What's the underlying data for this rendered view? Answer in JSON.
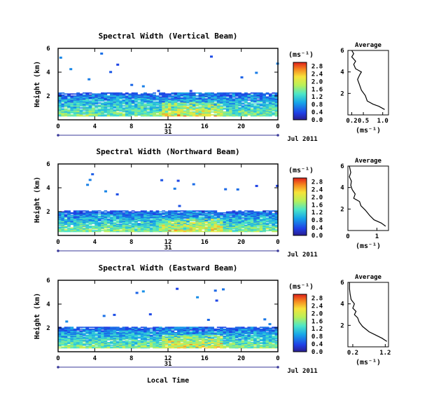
{
  "figure": {
    "xlabel": "Local Time",
    "date_label": "Jul 2011",
    "day_label": "31"
  },
  "chart_data": [
    {
      "type": "heatmap",
      "title": "Spectral Width (Vertical Beam)",
      "ylabel": "Height (km)",
      "x_ticks": [
        "0",
        "4",
        "8",
        "12",
        "16",
        "20",
        "0"
      ],
      "y_ticks": [
        "2",
        "4",
        "6"
      ],
      "xlim": [
        0,
        24
      ],
      "ylim": [
        0,
        6
      ],
      "colorbar": {
        "unit": "(ms⁻¹)",
        "ticks": [
          "0.0",
          "0.4",
          "0.8",
          "1.2",
          "1.6",
          "2.0",
          "2.4",
          "2.8"
        ],
        "range": [
          0,
          3.0
        ]
      },
      "average_panel": {
        "title": "Average",
        "xlabel": "(ms⁻¹)",
        "x_ticks": [
          "0.2",
          "0.5",
          "1.0"
        ],
        "xlim": [
          0.1,
          1.15
        ],
        "y_ticks": [
          "2",
          "4",
          "6"
        ],
        "profile": [
          [
            1.05,
            0.5
          ],
          [
            0.9,
            0.8
          ],
          [
            0.75,
            1.0
          ],
          [
            0.6,
            1.3
          ],
          [
            0.55,
            1.8
          ],
          [
            0.45,
            2.3
          ],
          [
            0.4,
            2.8
          ],
          [
            0.35,
            3.3
          ],
          [
            0.4,
            3.7
          ],
          [
            0.45,
            4.0
          ],
          [
            0.3,
            4.3
          ],
          [
            0.25,
            4.7
          ],
          [
            0.3,
            5.0
          ],
          [
            0.2,
            5.4
          ],
          [
            0.25,
            5.7
          ],
          [
            0.2,
            6.0
          ]
        ]
      }
    },
    {
      "type": "heatmap",
      "title": "Spectral Width (Northward Beam)",
      "ylabel": "Height (km)",
      "x_ticks": [
        "0",
        "4",
        "8",
        "12",
        "16",
        "20",
        "0"
      ],
      "y_ticks": [
        "2",
        "4",
        "6"
      ],
      "xlim": [
        0,
        24
      ],
      "ylim": [
        0,
        6
      ],
      "colorbar": {
        "unit": "(ms⁻¹)",
        "ticks": [
          "0.0",
          "0.4",
          "0.8",
          "1.2",
          "1.6",
          "2.0",
          "2.4",
          "2.8"
        ],
        "range": [
          0,
          3.0
        ]
      },
      "average_panel": {
        "title": "Average",
        "xlabel": "(ms⁻¹)",
        "x_ticks": [
          "0",
          "1"
        ],
        "xlim": [
          0,
          1.4
        ],
        "y_ticks": [
          "2",
          "4",
          "6"
        ],
        "profile": [
          [
            1.3,
            0.4
          ],
          [
            1.15,
            0.7
          ],
          [
            0.9,
            1.0
          ],
          [
            0.75,
            1.4
          ],
          [
            0.6,
            1.9
          ],
          [
            0.45,
            2.3
          ],
          [
            0.4,
            2.7
          ],
          [
            0.2,
            3.0
          ],
          [
            0.25,
            3.4
          ],
          [
            0.15,
            3.8
          ],
          [
            0.1,
            4.2
          ],
          [
            0.12,
            4.6
          ],
          [
            0.05,
            5.0
          ],
          [
            0.1,
            5.4
          ],
          [
            0.05,
            6.0
          ]
        ]
      }
    },
    {
      "type": "heatmap",
      "title": "Spectral Width (Eastward Beam)",
      "ylabel": "Height (km)",
      "x_ticks": [
        "0",
        "4",
        "8",
        "12",
        "16",
        "20",
        "0"
      ],
      "y_ticks": [
        "2",
        "4",
        "6"
      ],
      "xlim": [
        0,
        24
      ],
      "ylim": [
        0,
        6
      ],
      "colorbar": {
        "unit": "(ms⁻¹)",
        "ticks": [
          "0.0",
          "0.4",
          "0.8",
          "1.2",
          "1.6",
          "2.0",
          "2.4",
          "2.8"
        ],
        "range": [
          0,
          3.0
        ]
      },
      "average_panel": {
        "title": "Average",
        "xlabel": "(ms⁻¹)",
        "x_ticks": [
          "0.2",
          "1.2"
        ],
        "xlim": [
          0.05,
          1.3
        ],
        "y_ticks": [
          "2",
          "4",
          "6"
        ],
        "profile": [
          [
            1.25,
            0.5
          ],
          [
            1.1,
            0.8
          ],
          [
            0.9,
            1.1
          ],
          [
            0.7,
            1.4
          ],
          [
            0.5,
            1.9
          ],
          [
            0.4,
            2.3
          ],
          [
            0.35,
            2.7
          ],
          [
            0.25,
            3.0
          ],
          [
            0.3,
            3.3
          ],
          [
            0.2,
            3.6
          ],
          [
            0.25,
            4.0
          ],
          [
            0.15,
            4.4
          ],
          [
            0.12,
            4.9
          ],
          [
            0.1,
            5.4
          ],
          [
            0.1,
            6.0
          ]
        ]
      }
    }
  ]
}
